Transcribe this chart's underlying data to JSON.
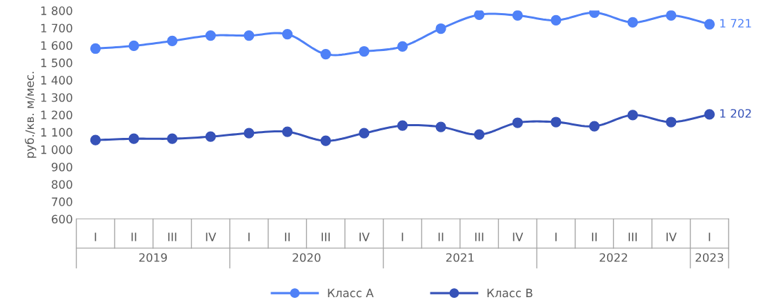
{
  "chart_data": {
    "type": "line",
    "ylabel": "руб./кв. м/мес.",
    "categories": [
      "I",
      "II",
      "III",
      "IV",
      "I",
      "II",
      "III",
      "IV",
      "I",
      "II",
      "III",
      "IV",
      "I",
      "II",
      "III",
      "IV",
      "I"
    ],
    "series": [
      {
        "name": "Класс А",
        "color": "#4f81f7",
        "values": [
          1581,
          1597,
          1625,
          1656,
          1656,
          1664,
          1549,
          1565,
          1593,
          1696,
          1776,
          1772,
          1744,
          1788,
          1732,
          1772,
          1721
        ],
        "value_labels": [
          null,
          null,
          null,
          null,
          null,
          null,
          null,
          null,
          null,
          null,
          null,
          null,
          null,
          null,
          null,
          null,
          "1 721"
        ]
      },
      {
        "name": "Класс В",
        "color": "#3652b8",
        "values": [
          1054,
          1062,
          1062,
          1074,
          1094,
          1102,
          1050,
          1094,
          1138,
          1130,
          1086,
          1154,
          1158,
          1134,
          1198,
          1158,
          1202
        ],
        "value_labels": [
          null,
          null,
          null,
          null,
          null,
          null,
          null,
          null,
          null,
          null,
          null,
          null,
          null,
          null,
          null,
          null,
          "1 202"
        ]
      }
    ],
    "annotations": [
      "2019",
      "2020",
      "2021",
      "2022",
      "2023"
    ],
    "ylim": [
      600,
      1800
    ],
    "yticks": [
      600,
      700,
      800,
      900,
      {
        "value": 1000,
        "label": "1 000"
      },
      {
        "value": 1100,
        "label": "1 100"
      },
      {
        "value": 1200,
        "label": "1 200"
      },
      {
        "value": 1300,
        "label": "1 300"
      },
      {
        "value": 1400,
        "label": "1 400"
      },
      {
        "value": 1500,
        "label": "1 500"
      },
      {
        "value": 1600,
        "label": "1 600"
      },
      {
        "value": 1700,
        "label": "1 700"
      },
      {
        "value": 1800,
        "label": "1 800"
      }
    ],
    "grid": false,
    "legend": "bottom",
    "marker": "circle",
    "line_style": "solid"
  }
}
